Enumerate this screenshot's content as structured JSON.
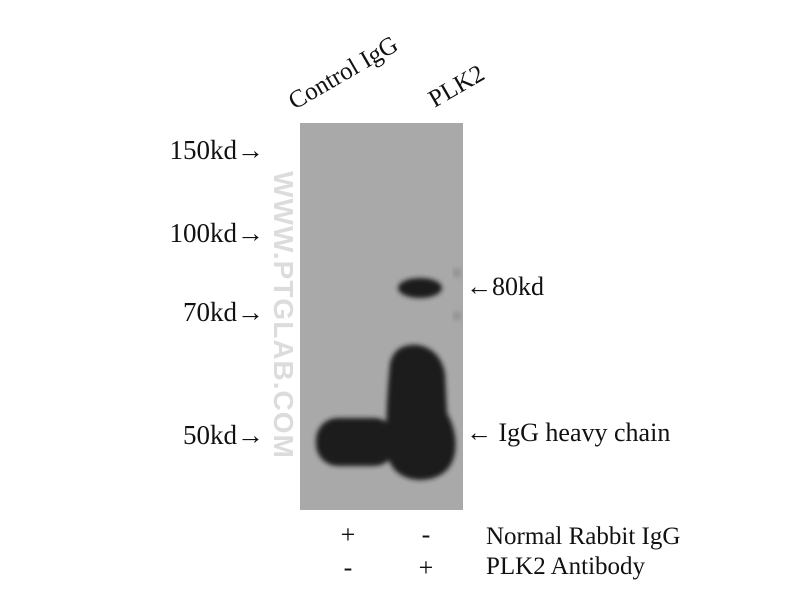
{
  "lanes": [
    "Control IgG",
    "PLK2"
  ],
  "markers": [
    "150kd→",
    "100kd→",
    "70kd→",
    "50kd→"
  ],
  "bands": [
    {
      "label": "←80kd"
    },
    {
      "label": "← IgG heavy chain"
    }
  ],
  "watermark": "WWW.PTGLAB.COM",
  "conditions": [
    {
      "label": "Normal Rabbit IgG",
      "signs": [
        "+",
        "-"
      ]
    },
    {
      "label": "PLK2 Antibody",
      "signs": [
        "-",
        "+"
      ]
    }
  ],
  "colors": {
    "membrane": "#a9a9a9",
    "band": "#1e1e1e"
  }
}
